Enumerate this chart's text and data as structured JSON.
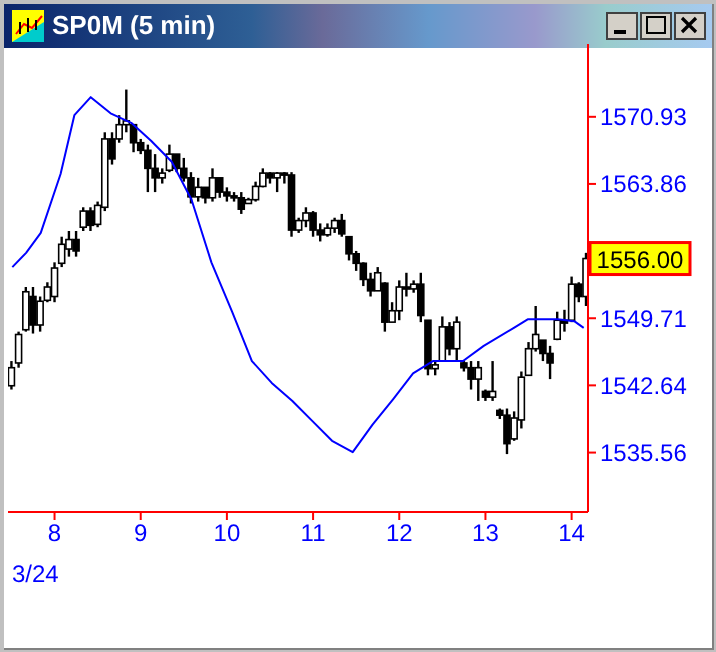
{
  "chart_data": {
    "type": "candlestick",
    "title": "SP0M (5 min)",
    "color": "#000000",
    "x": [
      7.5,
      7.583,
      7.667,
      7.75,
      7.833,
      7.917,
      8,
      8.083,
      8.167,
      8.25,
      8.333,
      8.417,
      8.5,
      8.583,
      8.667,
      8.75,
      8.833,
      8.917,
      9,
      9.083,
      9.167,
      9.25,
      9.333,
      9.417,
      9.5,
      9.583,
      9.667,
      9.75,
      9.833,
      9.917,
      10,
      10.083,
      10.167,
      10.25,
      10.333,
      10.417,
      10.5,
      10.583,
      10.667,
      10.75,
      10.833,
      10.917,
      11,
      11.083,
      11.167,
      11.25,
      11.333,
      11.417,
      11.5,
      11.583,
      11.667,
      11.75,
      11.833,
      11.917,
      12,
      12.083,
      12.167,
      12.25,
      12.333,
      12.417,
      12.5,
      12.583,
      12.667,
      12.75,
      12.833,
      12.917,
      13,
      13.083,
      13.167,
      13.25,
      13.333,
      13.417,
      13.5,
      13.583,
      13.667,
      13.75,
      13.833,
      13.917,
      14,
      14.083,
      14.167
    ],
    "ohlc": [
      [
        1542.6,
        1545.2,
        1542.2,
        1544.5
      ],
      [
        1545,
        1548.3,
        1544.5,
        1548
      ],
      [
        1548.5,
        1553,
        1548.3,
        1552.5
      ],
      [
        1552,
        1553,
        1548.1,
        1549
      ],
      [
        1549,
        1552,
        1548.3,
        1551.5
      ],
      [
        1551.6,
        1553.5,
        1551.4,
        1553
      ],
      [
        1552,
        1555.6,
        1551.4,
        1555
      ],
      [
        1555.5,
        1558.3,
        1555.1,
        1557.5
      ],
      [
        1557,
        1558.9,
        1556.2,
        1558
      ],
      [
        1558,
        1558.9,
        1556.2,
        1556.8
      ],
      [
        1559.3,
        1561.4,
        1558.9,
        1561
      ],
      [
        1561,
        1561.4,
        1558.9,
        1559.5
      ],
      [
        1559.6,
        1562,
        1559.3,
        1561.6
      ],
      [
        1561.4,
        1569.3,
        1561,
        1568.6
      ],
      [
        1568.6,
        1569.3,
        1565.9,
        1566.5
      ],
      [
        1568.6,
        1571.1,
        1568.2,
        1570.1
      ],
      [
        1570.1,
        1573.8,
        1569.3,
        1570.5
      ],
      [
        1570.1,
        1570.1,
        1567.2,
        1568.2
      ],
      [
        1568.2,
        1568.6,
        1567,
        1567.4
      ],
      [
        1567.4,
        1568,
        1563,
        1565.5
      ],
      [
        1565.5,
        1567,
        1563,
        1564.5
      ],
      [
        1564.5,
        1565.5,
        1563.9,
        1565
      ],
      [
        1565.3,
        1568,
        1565.1,
        1567
      ],
      [
        1567,
        1567,
        1565.1,
        1565.5
      ],
      [
        1565.5,
        1566.6,
        1564.1,
        1564.5
      ],
      [
        1564.5,
        1565.1,
        1561.8,
        1562.5
      ],
      [
        1562.5,
        1564.5,
        1562,
        1563.5
      ],
      [
        1563.5,
        1563.5,
        1561.8,
        1562.4
      ],
      [
        1562.4,
        1565.5,
        1562,
        1564.5
      ],
      [
        1564.5,
        1564.5,
        1562.4,
        1563
      ],
      [
        1563,
        1563.5,
        1562,
        1562.6
      ],
      [
        1562.6,
        1563,
        1562,
        1562.4
      ],
      [
        1562.4,
        1563,
        1560.7,
        1561.2
      ],
      [
        1561.8,
        1562.4,
        1561.8,
        1562.2
      ],
      [
        1562.2,
        1564.1,
        1562,
        1563.6
      ],
      [
        1563.6,
        1565.5,
        1563.5,
        1565
      ],
      [
        1565,
        1565.1,
        1563.9,
        1564.5
      ],
      [
        1564.5,
        1565.1,
        1563,
        1565
      ],
      [
        1565,
        1565.1,
        1563.9,
        1564.8
      ],
      [
        1564.8,
        1565.1,
        1558.3,
        1559
      ],
      [
        1559,
        1560.3,
        1558.7,
        1560
      ],
      [
        1560,
        1561.4,
        1559.3,
        1560.8
      ],
      [
        1560.8,
        1561,
        1558.3,
        1559
      ],
      [
        1559,
        1559.7,
        1557.8,
        1558.5
      ],
      [
        1558.5,
        1559.7,
        1558.3,
        1559.2
      ],
      [
        1559.2,
        1560.3,
        1558.7,
        1560
      ],
      [
        1560,
        1560.7,
        1558.3,
        1558.6
      ],
      [
        1558.3,
        1558.3,
        1555.8,
        1556.5
      ],
      [
        1556.5,
        1556.8,
        1554.7,
        1555.5
      ],
      [
        1555.5,
        1555.6,
        1553.1,
        1553.8
      ],
      [
        1553.8,
        1554.5,
        1552,
        1552.6
      ],
      [
        1552.6,
        1555.1,
        1552.6,
        1554.5
      ],
      [
        1553.4,
        1553.5,
        1548.3,
        1549.3
      ],
      [
        1549.3,
        1551.4,
        1549.3,
        1550.5
      ],
      [
        1550.5,
        1553.7,
        1549.5,
        1553
      ],
      [
        1553,
        1554.5,
        1552,
        1552.8
      ],
      [
        1552.8,
        1553.7,
        1552.4,
        1553.3
      ],
      [
        1553.3,
        1554.5,
        1549.3,
        1550
      ],
      [
        1549.5,
        1549.5,
        1543.7,
        1544.4
      ],
      [
        1544.4,
        1545.2,
        1543.7,
        1544.8
      ],
      [
        1545.2,
        1549.9,
        1545.2,
        1548.8
      ],
      [
        1548.8,
        1549.3,
        1545.8,
        1546.5
      ],
      [
        1546.5,
        1549.9,
        1545.2,
        1549.3
      ],
      [
        1545,
        1545.2,
        1544.1,
        1544.5
      ],
      [
        1544.5,
        1545.2,
        1542.2,
        1543.3
      ],
      [
        1543.3,
        1545.2,
        1541,
        1544.5
      ],
      [
        1542,
        1542.2,
        1541,
        1541.4
      ],
      [
        1541.4,
        1545.2,
        1541,
        1542
      ],
      [
        1540,
        1540.2,
        1539.1,
        1539.5
      ],
      [
        1539.5,
        1540.2,
        1535.4,
        1536.5
      ],
      [
        1537,
        1539.9,
        1536.8,
        1539.2
      ],
      [
        1539,
        1544.1,
        1538.1,
        1543.5
      ],
      [
        1543.7,
        1547.2,
        1543.7,
        1546.5
      ],
      [
        1546.5,
        1551,
        1546.2,
        1548
      ],
      [
        1547.4,
        1547.4,
        1545.2,
        1546
      ],
      [
        1546,
        1546.8,
        1543.3,
        1545
      ],
      [
        1547.5,
        1550.4,
        1547.4,
        1549.5
      ],
      [
        1549.5,
        1550.6,
        1548.3,
        1549.2
      ],
      [
        1549.5,
        1554.1,
        1549.3,
        1553.3
      ],
      [
        1553.3,
        1553.5,
        1551.4,
        1552
      ],
      [
        1552,
        1556.6,
        1551,
        1556
      ]
    ],
    "series": [
      {
        "type": "line",
        "color": "#0000ff",
        "x": [
          7.51,
          7.67,
          7.84,
          8.07,
          8.23,
          8.42,
          8.65,
          8.89,
          9.12,
          9.36,
          9.59,
          9.82,
          10.06,
          10.29,
          10.52,
          10.76,
          10.99,
          11.22,
          11.46,
          11.69,
          11.93,
          12.16,
          12.39,
          12.74,
          12.98,
          13.33,
          13.49,
          13.84,
          14.03,
          14.14
        ],
        "values": [
          1555.1,
          1556.6,
          1558.7,
          1564.9,
          1571.1,
          1573,
          1571.3,
          1570.3,
          1568.4,
          1566.2,
          1562.2,
          1555.6,
          1550.4,
          1545.2,
          1542.9,
          1541,
          1538.9,
          1536.8,
          1535.6,
          1538.5,
          1541.2,
          1543.9,
          1545.2,
          1545.2,
          1546.8,
          1548.7,
          1549.6,
          1549.6,
          1549.4,
          1548.7
        ]
      }
    ],
    "xlim": [
      7.46,
      14.19
    ],
    "xticks": [
      8,
      9,
      10,
      11,
      12,
      13,
      14
    ],
    "ylim": [
      1529.3,
      1578.6
    ],
    "yticks": [
      1535.56,
      1542.64,
      1549.71,
      1563.86,
      1570.93
    ],
    "annotations": [
      "1556.00",
      "3/24"
    ]
  }
}
